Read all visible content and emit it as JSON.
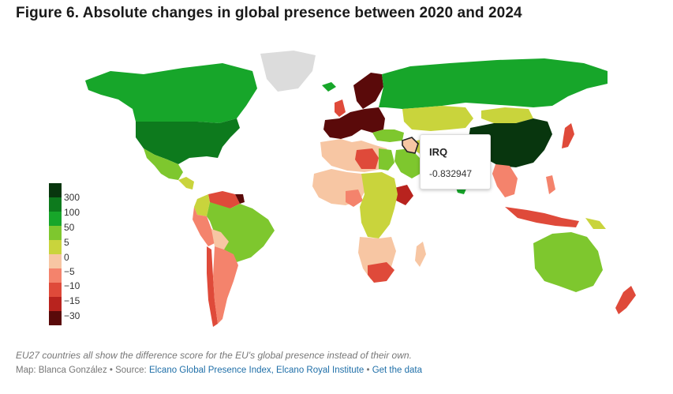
{
  "title": "Figure 6. Absolute changes in global presence between 2020 and 2024",
  "legend": {
    "labels": [
      "300",
      "100",
      "50",
      "5",
      "0",
      "−5",
      "−10",
      "−15",
      "−30"
    ],
    "colors": [
      "#08360e",
      "#0d7a1d",
      "#17a62a",
      "#7ec72e",
      "#c9d43c",
      "#f7c6a3",
      "#f4836c",
      "#df4a3a",
      "#b8231e",
      "#5a0a0a"
    ]
  },
  "tooltip": {
    "country": "IRQ",
    "value": "-0.832947"
  },
  "note": "EU27 countries all show the difference score for the EU's global presence instead of their own.",
  "credit": {
    "prefix": "Map: Blanca González • Source: ",
    "source_link": "Elcano Global Presence Index, Elcano Royal Institute",
    "separator": " • ",
    "data_link": "Get the data"
  },
  "colors": {
    "no_data": "#dcdcdc",
    "dark_green": "#08360e",
    "green_100": "#0d7a1d",
    "green_50": "#17a62a",
    "green_5": "#7ec72e",
    "yellow_0": "#c9d43c",
    "peach": "#f7c6a3",
    "salmon": "#f4836c",
    "red": "#df4a3a",
    "dark_red": "#5a0a0a"
  }
}
